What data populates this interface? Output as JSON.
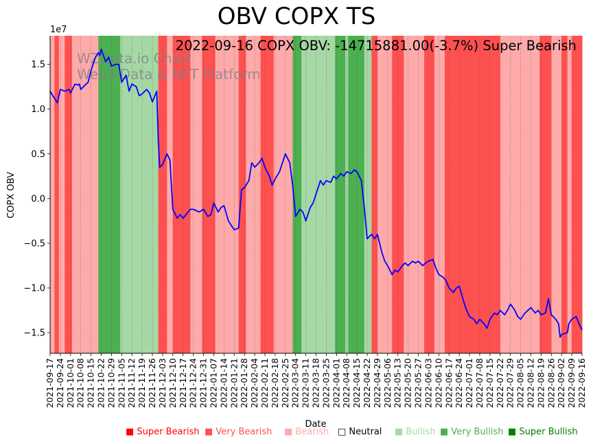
{
  "title": "OBV COPX TS",
  "annotation": "2022-09-16 COPX OBV: -14715881.00(-3.7%) Super Bearish",
  "watermark": [
    "WZData.io Chart",
    "Web3 Data & NFT Platform"
  ],
  "colors": {
    "line": "#0000ff",
    "super_bearish": "#ff0000",
    "very_bearish": "#ff5050",
    "bearish": "#ffaaaa",
    "bullish": "#a6d8a6",
    "very_bullish": "#4caf50",
    "super_bullish": "#008000"
  },
  "legend": [
    {
      "label": "Super Bearish",
      "symbol": "■",
      "color": "#ff0000"
    },
    {
      "label": "Very Bearish",
      "symbol": "■",
      "color": "#ff5050"
    },
    {
      "label": "Bearish",
      "symbol": "■",
      "color": "#ffaaaa"
    },
    {
      "label": "Neutral",
      "symbol": "□",
      "color": "#000000"
    },
    {
      "label": "Bullish",
      "symbol": "■",
      "color": "#a6d8a6"
    },
    {
      "label": "Very Bullish",
      "symbol": "■",
      "color": "#4caf50"
    },
    {
      "label": "Super Bullish",
      "symbol": "■",
      "color": "#008000"
    }
  ],
  "chart_data": {
    "type": "line",
    "title": "OBV COPX TS",
    "xlabel": "Date",
    "ylabel": "COPX OBV",
    "y_scale_label": "1e7",
    "xlim": [
      "2021-09-17",
      "2022-09-16"
    ],
    "ylim": [
      -1.73,
      1.82
    ],
    "y_ticks": [
      -1.5,
      -1.0,
      -0.5,
      0.0,
      0.5,
      1.0,
      1.5
    ],
    "y_tick_labels": [
      "−1.5",
      "−1.0",
      "−0.5",
      "0.0",
      "0.5",
      "1.0",
      "1.5"
    ],
    "x_tick_labels": [
      "2021-09-17",
      "2021-09-24",
      "2021-10-01",
      "2021-10-08",
      "2021-10-15",
      "2021-10-22",
      "2021-10-29",
      "2021-11-05",
      "2021-11-12",
      "2021-11-19",
      "2021-11-26",
      "2021-12-03",
      "2021-12-10",
      "2021-12-17",
      "2021-12-24",
      "2021-12-31",
      "2022-01-07",
      "2022-01-14",
      "2022-01-21",
      "2022-01-28",
      "2022-02-04",
      "2022-02-11",
      "2022-02-18",
      "2022-02-25",
      "2022-03-04",
      "2022-03-11",
      "2022-03-18",
      "2022-03-25",
      "2022-04-01",
      "2022-04-08",
      "2022-04-15",
      "2022-04-22",
      "2022-04-29",
      "2022-05-06",
      "2022-05-13",
      "2022-05-20",
      "2022-05-27",
      "2022-06-03",
      "2022-06-10",
      "2022-06-17",
      "2022-06-24",
      "2022-07-01",
      "2022-07-08",
      "2022-07-15",
      "2022-07-22",
      "2022-07-29",
      "2022-08-05",
      "2022-08-12",
      "2022-08-19",
      "2022-08-26",
      "2022-09-02",
      "2022-09-09",
      "2022-09-16"
    ],
    "series": [
      {
        "name": "COPX OBV (1e7)",
        "points": [
          [
            "2021-09-17",
            1.2
          ],
          [
            "2021-09-20",
            1.12
          ],
          [
            "2021-09-22",
            1.07
          ],
          [
            "2021-09-24",
            1.22
          ],
          [
            "2021-09-27",
            1.2
          ],
          [
            "2021-09-30",
            1.22
          ],
          [
            "2021-10-01",
            1.18
          ],
          [
            "2021-10-04",
            1.28
          ],
          [
            "2021-10-06",
            1.27
          ],
          [
            "2021-10-07",
            1.28
          ],
          [
            "2021-10-08",
            1.22
          ],
          [
            "2021-10-11",
            1.27
          ],
          [
            "2021-10-13",
            1.3
          ],
          [
            "2021-10-15",
            1.43
          ],
          [
            "2021-10-18",
            1.58
          ],
          [
            "2021-10-20",
            1.63
          ],
          [
            "2021-10-21",
            1.6
          ],
          [
            "2021-10-22",
            1.67
          ],
          [
            "2021-10-25",
            1.53
          ],
          [
            "2021-10-27",
            1.58
          ],
          [
            "2021-10-29",
            1.48
          ],
          [
            "2021-11-01",
            1.5
          ],
          [
            "2021-11-03",
            1.5
          ],
          [
            "2021-11-05",
            1.3
          ],
          [
            "2021-11-08",
            1.38
          ],
          [
            "2021-11-10",
            1.2
          ],
          [
            "2021-11-12",
            1.28
          ],
          [
            "2021-11-15",
            1.25
          ],
          [
            "2021-11-17",
            1.15
          ],
          [
            "2021-11-19",
            1.17
          ],
          [
            "2021-11-22",
            1.22
          ],
          [
            "2021-11-24",
            1.18
          ],
          [
            "2021-11-26",
            1.08
          ],
          [
            "2021-11-29",
            1.2
          ],
          [
            "2021-11-30",
            0.65
          ],
          [
            "2021-12-01",
            0.35
          ],
          [
            "2021-12-03",
            0.38
          ],
          [
            "2021-12-06",
            0.5
          ],
          [
            "2021-12-08",
            0.43
          ],
          [
            "2021-12-10",
            -0.12
          ],
          [
            "2021-12-13",
            -0.22
          ],
          [
            "2021-12-15",
            -0.18
          ],
          [
            "2021-12-17",
            -0.22
          ],
          [
            "2021-12-20",
            -0.16
          ],
          [
            "2021-12-22",
            -0.12
          ],
          [
            "2021-12-24",
            -0.12
          ],
          [
            "2021-12-28",
            -0.15
          ],
          [
            "2021-12-31",
            -0.12
          ],
          [
            "2022-01-03",
            -0.2
          ],
          [
            "2022-01-05",
            -0.18
          ],
          [
            "2022-01-07",
            -0.05
          ],
          [
            "2022-01-10",
            -0.15
          ],
          [
            "2022-01-12",
            -0.1
          ],
          [
            "2022-01-14",
            -0.08
          ],
          [
            "2022-01-17",
            -0.25
          ],
          [
            "2022-01-19",
            -0.3
          ],
          [
            "2022-01-21",
            -0.35
          ],
          [
            "2022-01-24",
            -0.33
          ],
          [
            "2022-01-26",
            0.1
          ],
          [
            "2022-01-28",
            0.12
          ],
          [
            "2022-01-31",
            0.2
          ],
          [
            "2022-02-02",
            0.4
          ],
          [
            "2022-02-04",
            0.35
          ],
          [
            "2022-02-07",
            0.4
          ],
          [
            "2022-02-09",
            0.45
          ],
          [
            "2022-02-11",
            0.35
          ],
          [
            "2022-02-14",
            0.25
          ],
          [
            "2022-02-16",
            0.15
          ],
          [
            "2022-02-18",
            0.22
          ],
          [
            "2022-02-21",
            0.3
          ],
          [
            "2022-02-23",
            0.4
          ],
          [
            "2022-02-25",
            0.5
          ],
          [
            "2022-02-28",
            0.4
          ],
          [
            "2022-03-02",
            0.15
          ],
          [
            "2022-03-04",
            -0.2
          ],
          [
            "2022-03-07",
            -0.12
          ],
          [
            "2022-03-09",
            -0.15
          ],
          [
            "2022-03-11",
            -0.25
          ],
          [
            "2022-03-14",
            -0.1
          ],
          [
            "2022-03-16",
            -0.05
          ],
          [
            "2022-03-18",
            0.05
          ],
          [
            "2022-03-21",
            0.2
          ],
          [
            "2022-03-23",
            0.15
          ],
          [
            "2022-03-25",
            0.2
          ],
          [
            "2022-03-28",
            0.18
          ],
          [
            "2022-03-30",
            0.25
          ],
          [
            "2022-04-01",
            0.22
          ],
          [
            "2022-04-04",
            0.28
          ],
          [
            "2022-04-06",
            0.25
          ],
          [
            "2022-04-08",
            0.3
          ],
          [
            "2022-04-11",
            0.28
          ],
          [
            "2022-04-13",
            0.32
          ],
          [
            "2022-04-15",
            0.3
          ],
          [
            "2022-04-18",
            0.2
          ],
          [
            "2022-04-20",
            -0.1
          ],
          [
            "2022-04-22",
            -0.45
          ],
          [
            "2022-04-25",
            -0.4
          ],
          [
            "2022-04-27",
            -0.45
          ],
          [
            "2022-04-29",
            -0.4
          ],
          [
            "2022-05-02",
            -0.6
          ],
          [
            "2022-05-04",
            -0.7
          ],
          [
            "2022-05-06",
            -0.75
          ],
          [
            "2022-05-09",
            -0.85
          ],
          [
            "2022-05-11",
            -0.8
          ],
          [
            "2022-05-13",
            -0.82
          ],
          [
            "2022-05-16",
            -0.75
          ],
          [
            "2022-05-18",
            -0.72
          ],
          [
            "2022-05-20",
            -0.75
          ],
          [
            "2022-05-23",
            -0.7
          ],
          [
            "2022-05-25",
            -0.72
          ],
          [
            "2022-05-27",
            -0.7
          ],
          [
            "2022-05-30",
            -0.75
          ],
          [
            "2022-06-01",
            -0.72
          ],
          [
            "2022-06-03",
            -0.7
          ],
          [
            "2022-06-06",
            -0.68
          ],
          [
            "2022-06-08",
            -0.78
          ],
          [
            "2022-06-10",
            -0.85
          ],
          [
            "2022-06-13",
            -0.88
          ],
          [
            "2022-06-15",
            -0.92
          ],
          [
            "2022-06-17",
            -1.0
          ],
          [
            "2022-06-20",
            -1.05
          ],
          [
            "2022-06-22",
            -1.0
          ],
          [
            "2022-06-24",
            -0.98
          ],
          [
            "2022-06-27",
            -1.15
          ],
          [
            "2022-06-29",
            -1.25
          ],
          [
            "2022-07-01",
            -1.32
          ],
          [
            "2022-07-04",
            -1.35
          ],
          [
            "2022-07-06",
            -1.4
          ],
          [
            "2022-07-08",
            -1.35
          ],
          [
            "2022-07-11",
            -1.4
          ],
          [
            "2022-07-13",
            -1.45
          ],
          [
            "2022-07-15",
            -1.35
          ],
          [
            "2022-07-18",
            -1.28
          ],
          [
            "2022-07-20",
            -1.3
          ],
          [
            "2022-07-22",
            -1.25
          ],
          [
            "2022-07-25",
            -1.3
          ],
          [
            "2022-07-27",
            -1.25
          ],
          [
            "2022-07-29",
            -1.18
          ],
          [
            "2022-08-01",
            -1.25
          ],
          [
            "2022-08-03",
            -1.32
          ],
          [
            "2022-08-05",
            -1.35
          ],
          [
            "2022-08-08",
            -1.28
          ],
          [
            "2022-08-10",
            -1.25
          ],
          [
            "2022-08-12",
            -1.22
          ],
          [
            "2022-08-15",
            -1.28
          ],
          [
            "2022-08-17",
            -1.25
          ],
          [
            "2022-08-19",
            -1.3
          ],
          [
            "2022-08-22",
            -1.28
          ],
          [
            "2022-08-24",
            -1.12
          ],
          [
            "2022-08-26",
            -1.3
          ],
          [
            "2022-08-29",
            -1.35
          ],
          [
            "2022-08-31",
            -1.4
          ],
          [
            "2022-09-01",
            -1.55
          ],
          [
            "2022-09-02",
            -1.52
          ],
          [
            "2022-09-06",
            -1.5
          ],
          [
            "2022-09-07",
            -1.4
          ],
          [
            "2022-09-09",
            -1.35
          ],
          [
            "2022-09-12",
            -1.32
          ],
          [
            "2022-09-14",
            -1.4
          ],
          [
            "2022-09-16",
            -1.47
          ]
        ]
      }
    ],
    "regime_bands": [
      {
        "start": "2021-09-17",
        "end": "2021-09-20",
        "state": "bearish"
      },
      {
        "start": "2021-09-20",
        "end": "2021-09-23",
        "state": "very_bearish"
      },
      {
        "start": "2021-09-23",
        "end": "2021-09-27",
        "state": "bearish"
      },
      {
        "start": "2021-09-27",
        "end": "2021-10-02",
        "state": "very_bearish"
      },
      {
        "start": "2021-10-02",
        "end": "2021-10-20",
        "state": "bearish"
      },
      {
        "start": "2021-10-20",
        "end": "2021-10-23",
        "state": "very_bullish"
      },
      {
        "start": "2021-10-23",
        "end": "2021-11-04",
        "state": "very_bullish"
      },
      {
        "start": "2021-11-04",
        "end": "2021-11-08",
        "state": "bullish"
      },
      {
        "start": "2021-11-08",
        "end": "2021-11-30",
        "state": "bullish"
      },
      {
        "start": "2021-11-30",
        "end": "2021-12-06",
        "state": "very_bearish"
      },
      {
        "start": "2021-12-06",
        "end": "2021-12-10",
        "state": "bearish"
      },
      {
        "start": "2021-12-10",
        "end": "2021-12-22",
        "state": "very_bearish"
      },
      {
        "start": "2021-12-22",
        "end": "2021-12-30",
        "state": "bearish"
      },
      {
        "start": "2021-12-30",
        "end": "2022-01-03",
        "state": "very_bearish"
      },
      {
        "start": "2022-01-03",
        "end": "2022-01-08",
        "state": "very_bearish"
      },
      {
        "start": "2022-01-08",
        "end": "2022-01-24",
        "state": "bearish"
      },
      {
        "start": "2022-01-24",
        "end": "2022-01-29",
        "state": "very_bearish"
      },
      {
        "start": "2022-01-29",
        "end": "2022-02-08",
        "state": "bearish"
      },
      {
        "start": "2022-02-08",
        "end": "2022-02-17",
        "state": "very_bearish"
      },
      {
        "start": "2022-02-17",
        "end": "2022-03-02",
        "state": "bearish"
      },
      {
        "start": "2022-03-02",
        "end": "2022-03-08",
        "state": "very_bullish"
      },
      {
        "start": "2022-03-08",
        "end": "2022-03-31",
        "state": "bullish"
      },
      {
        "start": "2022-03-31",
        "end": "2022-04-07",
        "state": "very_bullish"
      },
      {
        "start": "2022-04-07",
        "end": "2022-04-09",
        "state": "bullish"
      },
      {
        "start": "2022-04-09",
        "end": "2022-04-20",
        "state": "very_bullish"
      },
      {
        "start": "2022-04-20",
        "end": "2022-04-25",
        "state": "bullish"
      },
      {
        "start": "2022-04-25",
        "end": "2022-04-29",
        "state": "very_bearish"
      },
      {
        "start": "2022-04-29",
        "end": "2022-05-09",
        "state": "bearish"
      },
      {
        "start": "2022-05-09",
        "end": "2022-05-17",
        "state": "very_bearish"
      },
      {
        "start": "2022-05-17",
        "end": "2022-05-31",
        "state": "bearish"
      },
      {
        "start": "2022-05-31",
        "end": "2022-06-07",
        "state": "very_bearish"
      },
      {
        "start": "2022-06-07",
        "end": "2022-06-14",
        "state": "bearish"
      },
      {
        "start": "2022-06-14",
        "end": "2022-07-22",
        "state": "very_bearish"
      },
      {
        "start": "2022-07-22",
        "end": "2022-07-29",
        "state": "bearish"
      },
      {
        "start": "2022-07-29",
        "end": "2022-08-12",
        "state": "bearish"
      },
      {
        "start": "2022-08-12",
        "end": "2022-08-18",
        "state": "bearish"
      },
      {
        "start": "2022-08-18",
        "end": "2022-08-26",
        "state": "very_bearish"
      },
      {
        "start": "2022-08-26",
        "end": "2022-09-02",
        "state": "bearish"
      },
      {
        "start": "2022-09-02",
        "end": "2022-09-06",
        "state": "very_bearish"
      },
      {
        "start": "2022-09-06",
        "end": "2022-09-09",
        "state": "bearish"
      },
      {
        "start": "2022-09-09",
        "end": "2022-09-16",
        "state": "very_bearish"
      }
    ]
  }
}
